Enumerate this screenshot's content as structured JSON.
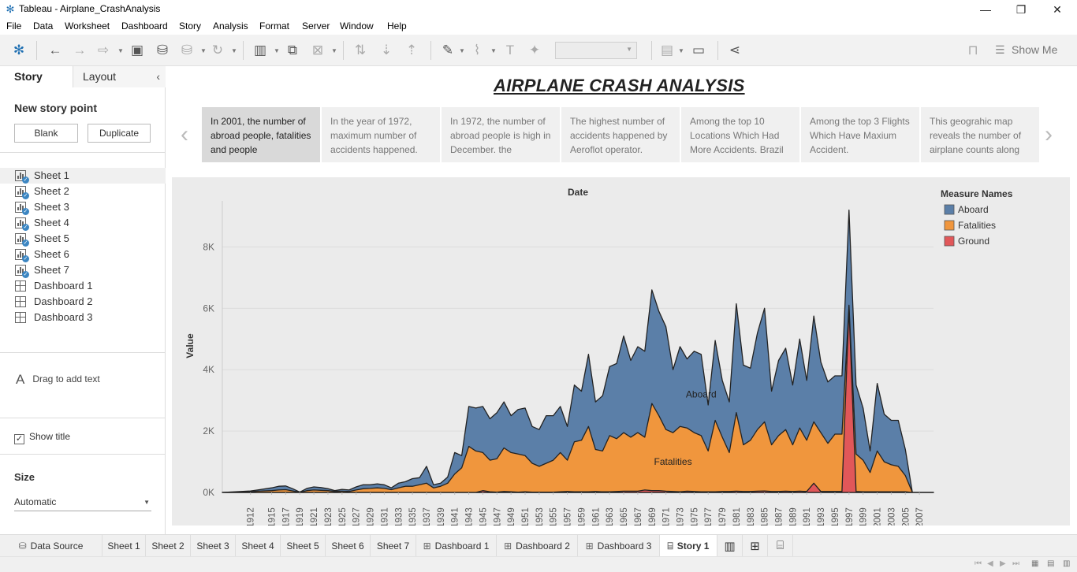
{
  "window": {
    "title": "Tableau - Airplane_CrashAnalysis",
    "icons": [
      "tableau-logo-icon",
      "minimize-icon",
      "restore-icon",
      "close-icon"
    ]
  },
  "menu": [
    "File",
    "Data",
    "Worksheet",
    "Dashboard",
    "Story",
    "Analysis",
    "Format",
    "Server",
    "Window",
    "Help"
  ],
  "toolbar": {
    "show_me_label": "Show Me"
  },
  "left_panel": {
    "tab_story": "Story",
    "tab_layout": "Layout",
    "new_story_point": "New story point",
    "blank_button": "Blank",
    "duplicate_button": "Duplicate",
    "items": [
      {
        "label": "Sheet 1",
        "kind": "sheet"
      },
      {
        "label": "Sheet 2",
        "kind": "sheet"
      },
      {
        "label": "Sheet 3",
        "kind": "sheet"
      },
      {
        "label": "Sheet 4",
        "kind": "sheet"
      },
      {
        "label": "Sheet 5",
        "kind": "sheet"
      },
      {
        "label": "Sheet 6",
        "kind": "sheet"
      },
      {
        "label": "Sheet 7",
        "kind": "sheet"
      },
      {
        "label": "Dashboard 1",
        "kind": "dashboard"
      },
      {
        "label": "Dashboard 2",
        "kind": "dashboard"
      },
      {
        "label": "Dashboard 3",
        "kind": "dashboard"
      }
    ],
    "drag_text": "Drag to add text",
    "show_title": "Show title",
    "size_label": "Size",
    "size_value": "Automatic"
  },
  "story": {
    "title": "AIRPLANE CRASH ANALYSIS",
    "captions": [
      "In 2001, the number of abroad people, fatalities and people",
      "In the year of 1972, maximum number of accidents happened.",
      "In 1972, the number of abroad people is high in  December. the",
      "The highest number of accidents happened by Aeroflot operator.",
      "Among the top 10 Locations Which Had More Accidents. Brazil",
      "Among the top 3 Flights Which Have Maxium Accident.",
      "This geograhic map reveals the number of airplane counts along"
    ]
  },
  "chart_data": {
    "type": "area",
    "title": "Date",
    "ylabel": "Value",
    "ylim": [
      0,
      9500
    ],
    "y_ticks": [
      "0K",
      "2K",
      "4K",
      "6K",
      "8K"
    ],
    "y_tick_values": [
      0,
      2000,
      4000,
      6000,
      8000
    ],
    "x_tick_labels": [
      "1912",
      "1915",
      "1917",
      "1919",
      "1921",
      "1923",
      "1925",
      "1927",
      "1929",
      "1931",
      "1933",
      "1935",
      "1937",
      "1939",
      "1941",
      "1943",
      "1945",
      "1947",
      "1949",
      "1951",
      "1953",
      "1955",
      "1957",
      "1959",
      "1961",
      "1963",
      "1965",
      "1967",
      "1969",
      "1971",
      "1973",
      "1975",
      "1977",
      "1979",
      "1981",
      "1983",
      "1985",
      "1987",
      "1989",
      "1991",
      "1993",
      "1995",
      "1997",
      "1999",
      "2001",
      "2003",
      "2005",
      "2007"
    ],
    "x": [
      1908,
      1912,
      1913,
      1915,
      1916,
      1917,
      1918,
      1919,
      1920,
      1921,
      1922,
      1923,
      1924,
      1925,
      1926,
      1927,
      1928,
      1929,
      1930,
      1931,
      1932,
      1933,
      1934,
      1935,
      1936,
      1937,
      1938,
      1939,
      1940,
      1941,
      1942,
      1943,
      1944,
      1945,
      1946,
      1947,
      1948,
      1949,
      1950,
      1951,
      1952,
      1953,
      1954,
      1955,
      1956,
      1957,
      1958,
      1959,
      1960,
      1961,
      1962,
      1963,
      1964,
      1965,
      1966,
      1967,
      1968,
      1969,
      1970,
      1971,
      1972,
      1973,
      1974,
      1975,
      1976,
      1977,
      1978,
      1979,
      1980,
      1981,
      1982,
      1983,
      1984,
      1985,
      1986,
      1987,
      1988,
      1989,
      1990,
      1991,
      1992,
      1993,
      1994,
      1995,
      1996,
      1997,
      1998,
      1999,
      2000,
      2001,
      2002,
      2003,
      2004,
      2005,
      2006,
      2007,
      2008,
      2009
    ],
    "legend_title": "Measure Names",
    "legend_position": "top-right",
    "series": [
      {
        "name": "Aboard",
        "color": "#5b7fa8",
        "values": [
          0,
          50,
          80,
          150,
          200,
          210,
          120,
          10,
          130,
          180,
          160,
          120,
          60,
          100,
          80,
          180,
          250,
          250,
          280,
          250,
          150,
          300,
          350,
          450,
          480,
          850,
          250,
          300,
          500,
          1300,
          1200,
          2800,
          2750,
          2800,
          2400,
          2600,
          2950,
          2500,
          2700,
          2750,
          2150,
          2050,
          2500,
          2500,
          2800,
          2150,
          3500,
          3300,
          4500,
          2950,
          3150,
          4100,
          4200,
          5100,
          4300,
          4750,
          4600,
          6600,
          5900,
          5400,
          4000,
          4750,
          4350,
          4600,
          4500,
          2850,
          4950,
          3650,
          2950,
          6150,
          4150,
          4050,
          5200,
          6000,
          3300,
          4300,
          4700,
          3500,
          5000,
          3650,
          5750,
          4250,
          3600,
          3800,
          3800,
          9200,
          3500,
          2750,
          1350,
          3550,
          2550,
          2350,
          2350,
          1400,
          0,
          0,
          0,
          0
        ]
      },
      {
        "name": "Fatalities",
        "color": "#f0963d",
        "values": [
          0,
          20,
          40,
          60,
          80,
          90,
          50,
          5,
          60,
          80,
          70,
          60,
          30,
          40,
          30,
          80,
          120,
          130,
          150,
          130,
          90,
          150,
          200,
          200,
          250,
          300,
          150,
          200,
          300,
          600,
          800,
          1500,
          1350,
          1300,
          1050,
          1100,
          1450,
          1300,
          1250,
          1200,
          950,
          850,
          950,
          1050,
          1300,
          1050,
          1650,
          1700,
          2150,
          1400,
          1350,
          1850,
          1750,
          1950,
          1800,
          1950,
          1800,
          2900,
          2500,
          2050,
          1950,
          2150,
          2100,
          1950,
          1850,
          1350,
          2350,
          1800,
          1300,
          2600,
          1550,
          1700,
          2050,
          2300,
          1550,
          1850,
          2050,
          1550,
          2100,
          1700,
          2300,
          1950,
          1600,
          1900,
          1900,
          6100,
          1250,
          1050,
          650,
          1350,
          1000,
          900,
          850,
          550,
          0,
          0,
          0,
          0
        ]
      },
      {
        "name": "Ground",
        "color": "#e15759",
        "values": [
          0,
          0,
          0,
          0,
          0,
          0,
          0,
          0,
          0,
          0,
          0,
          0,
          0,
          0,
          0,
          0,
          0,
          0,
          0,
          0,
          0,
          0,
          0,
          0,
          0,
          0,
          0,
          0,
          0,
          0,
          0,
          0,
          0,
          60,
          20,
          10,
          30,
          20,
          10,
          20,
          10,
          10,
          10,
          10,
          20,
          30,
          20,
          20,
          20,
          30,
          20,
          20,
          30,
          40,
          40,
          40,
          80,
          60,
          60,
          40,
          30,
          20,
          40,
          30,
          20,
          20,
          20,
          30,
          30,
          40,
          30,
          30,
          40,
          50,
          30,
          30,
          40,
          30,
          40,
          30,
          300,
          30,
          30,
          30,
          30,
          6000,
          30,
          20,
          20,
          20,
          20,
          20,
          20,
          20,
          0,
          0,
          0,
          0
        ]
      }
    ],
    "annotations": [
      {
        "text": "Aboard",
        "x": 1976,
        "y": 3100
      },
      {
        "text": "Fatalities",
        "x": 1972,
        "y": 900
      }
    ]
  },
  "bottom_tabs": [
    {
      "label": "Data Source",
      "kind": "datasource"
    },
    {
      "label": "Sheet 1",
      "kind": "sheet"
    },
    {
      "label": "Sheet 2",
      "kind": "sheet"
    },
    {
      "label": "Sheet 3",
      "kind": "sheet"
    },
    {
      "label": "Sheet 4",
      "kind": "sheet"
    },
    {
      "label": "Sheet 5",
      "kind": "sheet"
    },
    {
      "label": "Sheet 6",
      "kind": "sheet"
    },
    {
      "label": "Sheet 7",
      "kind": "sheet"
    },
    {
      "label": "Dashboard 1",
      "kind": "dashboard"
    },
    {
      "label": "Dashboard 2",
      "kind": "dashboard"
    },
    {
      "label": "Dashboard 3",
      "kind": "dashboard"
    },
    {
      "label": "Story 1",
      "kind": "story",
      "active": true
    }
  ]
}
